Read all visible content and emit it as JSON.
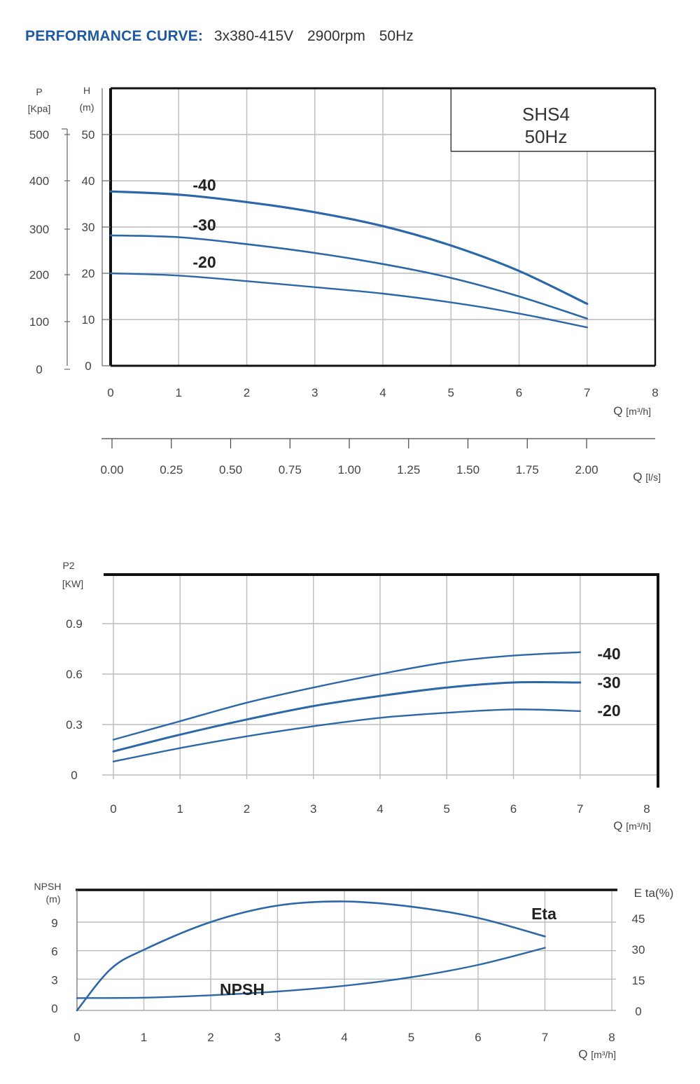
{
  "header": {
    "label": "PERFORMANCE CURVE:",
    "spec": "3x380-415V 2900rpm 50Hz"
  },
  "colors": {
    "accent": "#1f5aa0",
    "curve": "#2c68a8",
    "frame": "#111111",
    "grid": "#bcbcbc"
  },
  "chart_data": [
    {
      "type": "line",
      "model_box": [
        "SHS4",
        "50Hz"
      ],
      "xlabel": "Q [m³/h]",
      "x_ticks": [
        0,
        1,
        2,
        3,
        4,
        5,
        6,
        7,
        8
      ],
      "xlim": [
        0,
        8
      ],
      "y_left_outer_label": [
        "P",
        "[Kpa]"
      ],
      "y_left_outer_ticks": [
        0,
        100,
        200,
        300,
        400,
        500
      ],
      "ylabel": [
        "H",
        "(m)"
      ],
      "y_ticks": [
        0,
        10,
        20,
        30,
        40,
        50
      ],
      "ylim": [
        0,
        60
      ],
      "secondary_xlabel": "Q [l/s]",
      "secondary_x_ticks": [
        "0.00",
        "0.25",
        "0.50",
        "0.75",
        "1.00",
        "1.25",
        "1.50",
        "1.75",
        "2.00"
      ],
      "series": [
        {
          "name": "-40",
          "x": [
            0,
            1,
            2,
            3,
            4,
            5,
            6,
            7
          ],
          "values": [
            37.7,
            37.0,
            35.4,
            33.2,
            30.2,
            26.0,
            20.5,
            13.4
          ]
        },
        {
          "name": "-30",
          "x": [
            0,
            1,
            2,
            3,
            4,
            5,
            6,
            7
          ],
          "values": [
            28.2,
            27.8,
            26.3,
            24.4,
            22.0,
            19.0,
            15.0,
            10.2
          ]
        },
        {
          "name": "-20",
          "x": [
            0,
            1,
            2,
            3,
            4,
            5,
            6,
            7
          ],
          "values": [
            20.0,
            19.5,
            18.3,
            17.0,
            15.6,
            13.7,
            11.3,
            8.3
          ]
        }
      ]
    },
    {
      "type": "line",
      "ylabel": [
        "P2",
        "[KW]"
      ],
      "y_ticks": [
        "0",
        "0.3",
        "0.6",
        "0.9"
      ],
      "ylim": [
        0,
        1.2
      ],
      "xlabel": "Q [m³/h]",
      "x_ticks": [
        0,
        1,
        2,
        3,
        4,
        5,
        6,
        7,
        8
      ],
      "xlim": [
        0,
        8
      ],
      "series": [
        {
          "name": "-40",
          "x": [
            0,
            1,
            2,
            3,
            4,
            5,
            6,
            7
          ],
          "values": [
            0.21,
            0.32,
            0.43,
            0.52,
            0.6,
            0.67,
            0.71,
            0.73
          ]
        },
        {
          "name": "-30",
          "x": [
            0,
            1,
            2,
            3,
            4,
            5,
            6,
            7
          ],
          "values": [
            0.14,
            0.24,
            0.33,
            0.41,
            0.47,
            0.52,
            0.55,
            0.55
          ]
        },
        {
          "name": "-20",
          "x": [
            0,
            1,
            2,
            3,
            4,
            5,
            6,
            7
          ],
          "values": [
            0.08,
            0.16,
            0.23,
            0.29,
            0.34,
            0.37,
            0.39,
            0.38
          ]
        }
      ]
    },
    {
      "type": "line",
      "ylabel": [
        "NPSH",
        "(m)"
      ],
      "y_ticks": [
        0,
        3,
        6,
        9
      ],
      "ylim": [
        0,
        12
      ],
      "y2label": "E ta(%)",
      "y2_ticks": [
        0,
        15,
        30,
        45
      ],
      "y2lim": [
        0,
        60
      ],
      "xlabel": "Q [m³/h]",
      "x_ticks": [
        0,
        1,
        2,
        3,
        4,
        5,
        6,
        7,
        8
      ],
      "xlim": [
        0,
        8
      ],
      "series": [
        {
          "name": "Eta",
          "axis": "right",
          "x": [
            0,
            0.5,
            1,
            2,
            3,
            4,
            5,
            6,
            7
          ],
          "values": [
            0,
            20,
            29.5,
            43,
            51,
            53,
            50.5,
            45,
            36
          ]
        },
        {
          "name": "NPSH",
          "axis": "left",
          "x": [
            0,
            1,
            2,
            3,
            4,
            5,
            6,
            7
          ],
          "values": [
            1.0,
            1.05,
            1.3,
            1.7,
            2.3,
            3.2,
            4.5,
            6.3
          ]
        }
      ]
    }
  ]
}
